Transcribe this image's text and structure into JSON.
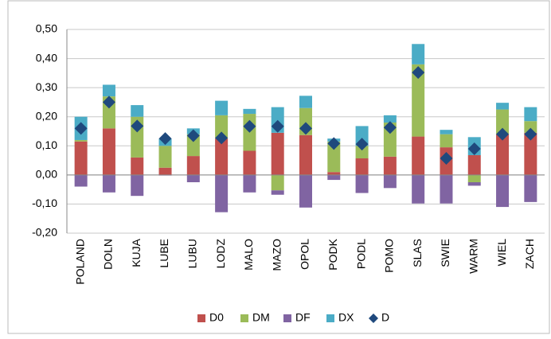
{
  "chart_data": {
    "type": "bar",
    "stacked": true,
    "categories": [
      "POLAND",
      "DOLN",
      "KUJA",
      "LUBE",
      "LUBU",
      "LODZ",
      "MALO",
      "MAZO",
      "OPOL",
      "PODK",
      "PODL",
      "POMO",
      "SLAS",
      "SWIE",
      "WARM",
      "WIEL",
      "ZACH"
    ],
    "series": [
      {
        "name": "D0",
        "color": "#c0504d",
        "values": [
          0.115,
          0.16,
          0.06,
          0.025,
          0.065,
          0.125,
          0.083,
          0.145,
          0.137,
          0.01,
          0.057,
          0.063,
          0.132,
          0.095,
          0.068,
          0.14,
          0.145
        ]
      },
      {
        "name": "DM",
        "color": "#9bbb59",
        "values": [
          0.005,
          0.11,
          0.14,
          0.075,
          0.075,
          0.08,
          0.127,
          -0.053,
          0.093,
          0.105,
          0.043,
          0.117,
          0.248,
          0.045,
          -0.025,
          0.085,
          0.04
        ]
      },
      {
        "name": "DF",
        "color": "#8064a2",
        "values": [
          -0.04,
          -0.06,
          -0.072,
          -0.002,
          -0.025,
          -0.128,
          -0.06,
          -0.015,
          -0.112,
          -0.017,
          -0.062,
          -0.045,
          -0.098,
          -0.098,
          -0.012,
          -0.11,
          -0.093
        ]
      },
      {
        "name": "DX",
        "color": "#4bacc6",
        "values": [
          0.08,
          0.04,
          0.04,
          0.025,
          0.02,
          0.05,
          0.017,
          0.088,
          0.042,
          0.01,
          0.068,
          0.025,
          0.07,
          0.015,
          0.062,
          0.023,
          0.048
        ]
      },
      {
        "name": "D",
        "color": "#1f497d",
        "type": "scatter",
        "marker": "diamond",
        "values": [
          0.16,
          0.25,
          0.168,
          0.125,
          0.135,
          0.127,
          0.167,
          0.167,
          0.16,
          0.108,
          0.106,
          0.163,
          0.352,
          0.057,
          0.09,
          0.14,
          0.14
        ]
      }
    ],
    "ylim": [
      -0.2,
      0.5
    ],
    "yticks": [
      {
        "value": -0.2,
        "label": "-0,20"
      },
      {
        "value": -0.1,
        "label": "-0,10"
      },
      {
        "value": 0,
        "label": "0,00"
      },
      {
        "value": 0.1,
        "label": "0,10"
      },
      {
        "value": 0.2,
        "label": "0,20"
      },
      {
        "value": 0.3,
        "label": "0,30"
      },
      {
        "value": 0.4,
        "label": "0,40"
      },
      {
        "value": 0.5,
        "label": "0,50"
      }
    ],
    "grid": true,
    "legend": "bottom"
  }
}
